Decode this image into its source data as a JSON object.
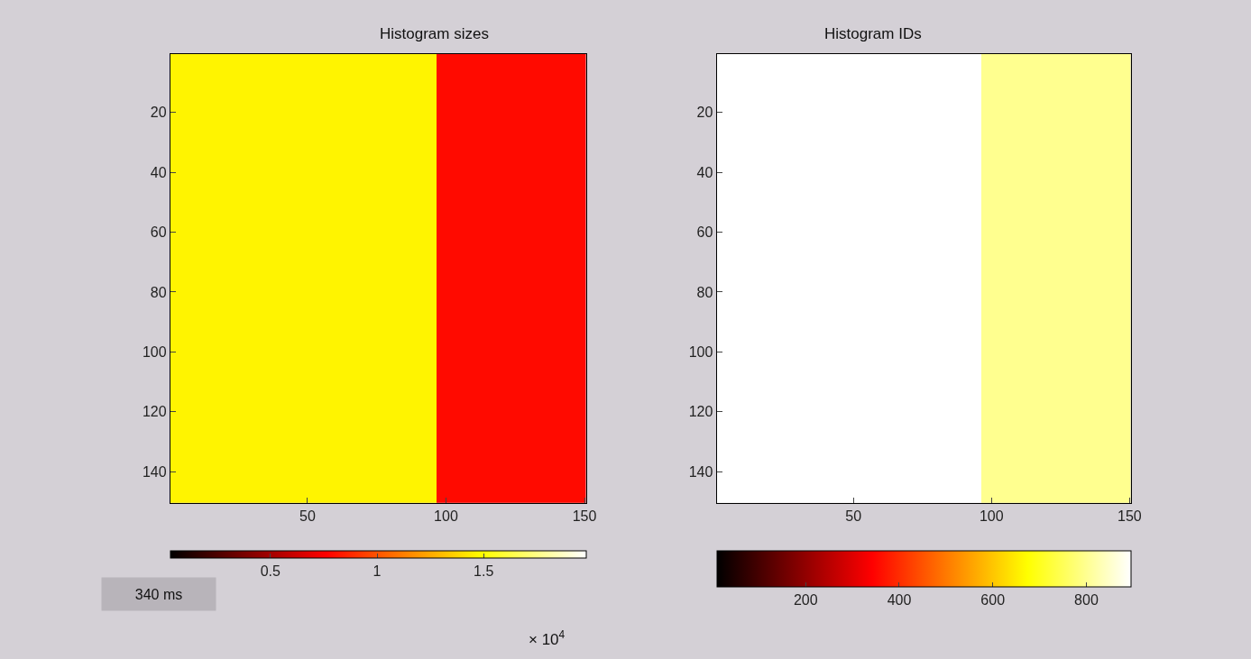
{
  "chart_data": [
    {
      "type": "heatmap",
      "title": "Histogram sizes",
      "xlim": [
        0.5,
        150.5
      ],
      "ylim": [
        150.5,
        0.5
      ],
      "xticks": [
        50,
        100,
        150
      ],
      "yticks": [
        20,
        40,
        60,
        80,
        100,
        120,
        140
      ],
      "cells": [
        [
          1.46,
          1.46,
          1.46,
          1.46,
          1.46,
          1.46,
          1.46,
          1.46,
          1.46,
          1.46,
          1.46,
          1.46,
          1.46,
          1.46,
          1.46,
          1.46,
          1.46,
          1.46,
          1.46,
          1.46,
          1.46,
          1.46,
          1.46,
          1.46,
          1.46,
          1.46,
          1.46,
          1.46,
          1.46,
          1.46,
          1.46,
          1.46,
          1.46,
          1.46,
          1.46,
          1.46,
          1.46,
          1.46,
          1.46,
          1.46,
          1.46,
          1.46,
          1.46,
          1.46,
          1.46,
          1.46,
          1.46,
          1.46,
          1.46,
          1.46,
          1.46,
          1.46,
          1.46,
          1.46,
          1.46,
          1.46,
          1.46,
          1.46,
          1.46,
          1.46,
          1.46,
          1.46,
          1.46,
          1.46,
          1.46,
          1.46,
          1.46,
          1.46,
          1.46,
          1.46,
          1.46,
          1.46,
          1.46,
          1.46,
          1.46,
          1.46,
          1.46,
          1.46,
          1.46,
          1.46,
          1.46,
          1.46,
          1.46,
          1.46,
          1.46,
          1.46,
          1.46,
          1.46,
          1.46,
          1.46,
          1.46,
          1.46,
          1.46,
          1.46,
          1.46,
          1.46,
          0.79,
          0.79,
          0.79,
          0.79,
          0.79,
          0.79,
          0.79,
          0.79,
          0.79,
          0.79,
          0.79,
          0.79,
          0.79,
          0.79,
          0.79,
          0.79,
          0.79,
          0.79,
          0.79,
          0.79,
          0.79,
          0.79,
          0.79,
          0.79,
          0.79,
          0.79,
          0.79,
          0.79,
          0.79,
          0.79,
          0.79,
          0.79,
          0.79,
          0.79,
          0.79,
          0.79,
          0.79,
          0.79,
          0.79,
          0.79,
          0.79,
          0.79,
          0.79,
          0.79,
          0.79,
          0.79,
          0.79,
          0.79,
          0.79,
          0.79,
          0.79,
          0.79,
          0.79,
          0.79
        ]
      ],
      "clim": [
        0.03,
        1.98
      ],
      "cticks": [
        0.5,
        1,
        1.5
      ],
      "annotations": [
        "340 ms",
        "× 10$^{4}$"
      ]
    },
    {
      "type": "heatmap",
      "title": "Histogram IDs",
      "xlim": [
        0.5,
        150.5
      ],
      "ylim": [
        150.5,
        0.5
      ],
      "xticks": [
        50,
        100,
        150
      ],
      "yticks": [
        20,
        40,
        60,
        80,
        100,
        120,
        140
      ],
      "cells": [
        [
          895,
          895,
          895,
          895,
          895,
          895,
          895,
          895,
          895,
          895,
          895,
          895,
          895,
          895,
          895,
          895,
          895,
          895,
          895,
          895,
          895,
          895,
          895,
          895,
          895,
          895,
          895,
          895,
          895,
          895,
          895,
          895,
          895,
          895,
          895,
          895,
          895,
          895,
          895,
          895,
          895,
          895,
          895,
          895,
          895,
          895,
          895,
          895,
          895,
          895,
          895,
          895,
          895,
          895,
          895,
          895,
          895,
          895,
          895,
          895,
          895,
          895,
          895,
          895,
          895,
          895,
          895,
          895,
          895,
          895,
          895,
          895,
          895,
          895,
          895,
          895,
          895,
          895,
          895,
          895,
          895,
          895,
          895,
          895,
          895,
          895,
          895,
          895,
          895,
          895,
          895,
          895,
          895,
          895,
          895,
          895,
          798,
          798,
          798,
          798,
          798,
          798,
          798,
          798,
          798,
          798,
          798,
          798,
          798,
          798,
          798,
          798,
          798,
          798,
          798,
          798,
          798,
          798,
          798,
          798,
          798,
          798,
          798,
          798,
          798,
          798,
          798,
          798,
          798,
          798,
          798,
          798,
          798,
          798,
          798,
          798,
          798,
          798,
          798,
          798,
          798,
          798,
          798,
          798,
          798,
          798,
          798,
          798,
          798,
          798
        ]
      ],
      "clim": [
        10,
        895
      ],
      "cticks": [
        200,
        400,
        600,
        800
      ]
    }
  ]
}
